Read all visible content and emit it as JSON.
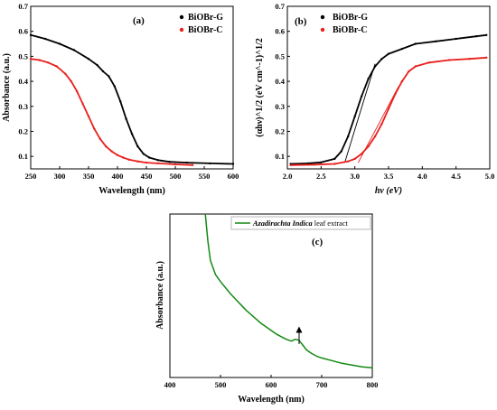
{
  "chart_data": [
    {
      "type": "line",
      "panel_label": "(a)",
      "xlabel": "Wavelength (nm)",
      "ylabel": "Absorbance (a.u.)",
      "xlim": [
        250,
        600
      ],
      "ylim": [
        0.05,
        0.7
      ],
      "xticks": [
        250,
        300,
        350,
        400,
        450,
        500,
        550,
        600
      ],
      "yticks": [
        0.1,
        0.2,
        0.3,
        0.4,
        0.5,
        0.6,
        0.7
      ],
      "legend_position": "top-right",
      "series": [
        {
          "name": "BiOBr-G",
          "color": "#000000",
          "x": [
            250,
            275,
            300,
            325,
            350,
            365,
            375,
            385,
            395,
            405,
            415,
            425,
            435,
            445,
            455,
            470,
            490,
            520,
            560,
            600
          ],
          "y": [
            0.585,
            0.57,
            0.55,
            0.525,
            0.49,
            0.465,
            0.44,
            0.42,
            0.38,
            0.32,
            0.25,
            0.19,
            0.14,
            0.11,
            0.095,
            0.085,
            0.078,
            0.075,
            0.072,
            0.07
          ]
        },
        {
          "name": "BiOBr-C",
          "color": "#e8201c",
          "x": [
            250,
            265,
            280,
            295,
            310,
            320,
            330,
            340,
            350,
            360,
            370,
            380,
            390,
            400,
            410,
            420,
            435,
            450,
            470,
            500,
            530
          ],
          "y": [
            0.49,
            0.485,
            0.475,
            0.46,
            0.43,
            0.4,
            0.36,
            0.31,
            0.26,
            0.21,
            0.17,
            0.14,
            0.12,
            0.105,
            0.095,
            0.087,
            0.08,
            0.075,
            0.072,
            0.068,
            0.065
          ]
        }
      ]
    },
    {
      "type": "line",
      "panel_label": "(b)",
      "xlabel": "hν (eV)",
      "ylabel": "(αhν)^1/2 (eV cm^-1)^1/2",
      "xlim": [
        2.0,
        5.0
      ],
      "ylim": [
        0.05,
        0.7
      ],
      "xticks": [
        "2.0",
        "2.5",
        "3.0",
        "3.5",
        "4.0",
        "4.5",
        "5.0"
      ],
      "yticks": [
        "0.1",
        "0.2",
        "0.3",
        "0.4",
        "0.5",
        "0.6",
        "0.7"
      ],
      "legend_position": "top-right",
      "series": [
        {
          "name": "BiOBr-G",
          "color": "#000000",
          "x": [
            2.05,
            2.3,
            2.5,
            2.7,
            2.8,
            2.9,
            3.0,
            3.1,
            3.2,
            3.3,
            3.4,
            3.5,
            3.7,
            3.9,
            4.2,
            4.5,
            4.8,
            4.95
          ],
          "y": [
            0.07,
            0.072,
            0.076,
            0.09,
            0.12,
            0.18,
            0.26,
            0.34,
            0.41,
            0.46,
            0.49,
            0.51,
            0.53,
            0.55,
            0.56,
            0.57,
            0.58,
            0.585
          ]
        },
        {
          "name": "BiOBr-C",
          "color": "#e8201c",
          "x": [
            2.05,
            2.4,
            2.7,
            2.9,
            3.0,
            3.1,
            3.2,
            3.3,
            3.4,
            3.5,
            3.6,
            3.7,
            3.8,
            3.9,
            4.1,
            4.4,
            4.7,
            4.95
          ],
          "y": [
            0.065,
            0.067,
            0.07,
            0.08,
            0.09,
            0.11,
            0.14,
            0.18,
            0.23,
            0.29,
            0.35,
            0.4,
            0.44,
            0.46,
            0.475,
            0.485,
            0.49,
            0.495
          ]
        }
      ],
      "tangents": [
        {
          "color": "#000000",
          "x": [
            2.85,
            3.3
          ],
          "y": [
            0.075,
            0.47
          ]
        },
        {
          "color": "#e8201c",
          "x": [
            3.05,
            3.65
          ],
          "y": [
            0.075,
            0.38
          ]
        }
      ]
    },
    {
      "type": "line",
      "panel_label": "(c)",
      "xlabel": "Wavelength (nm)",
      "ylabel": "Absorbance (a.u.)",
      "xlim": [
        400,
        800
      ],
      "ylim": [
        0.08,
        1.0
      ],
      "xticks": [
        400,
        500,
        600,
        700,
        800
      ],
      "legend_position": "top-right",
      "annotation": "arrow pointing to absorption peak near 655 nm",
      "series": [
        {
          "name": "Azadirachta Indica leaf extract",
          "name_italic": "Azadirachta Indica",
          "name_rest": " leaf extract",
          "color": "#138a13",
          "x": [
            470,
            475,
            480,
            490,
            500,
            510,
            520,
            530,
            540,
            550,
            560,
            570,
            580,
            590,
            600,
            610,
            620,
            630,
            640,
            648,
            655,
            662,
            670,
            680,
            690,
            700,
            720,
            740,
            760,
            780,
            800
          ],
          "y": [
            1.0,
            0.85,
            0.74,
            0.66,
            0.62,
            0.585,
            0.55,
            0.52,
            0.49,
            0.46,
            0.435,
            0.41,
            0.385,
            0.365,
            0.345,
            0.325,
            0.31,
            0.295,
            0.285,
            0.295,
            0.29,
            0.265,
            0.235,
            0.215,
            0.2,
            0.19,
            0.175,
            0.16,
            0.15,
            0.14,
            0.135
          ]
        }
      ]
    }
  ]
}
